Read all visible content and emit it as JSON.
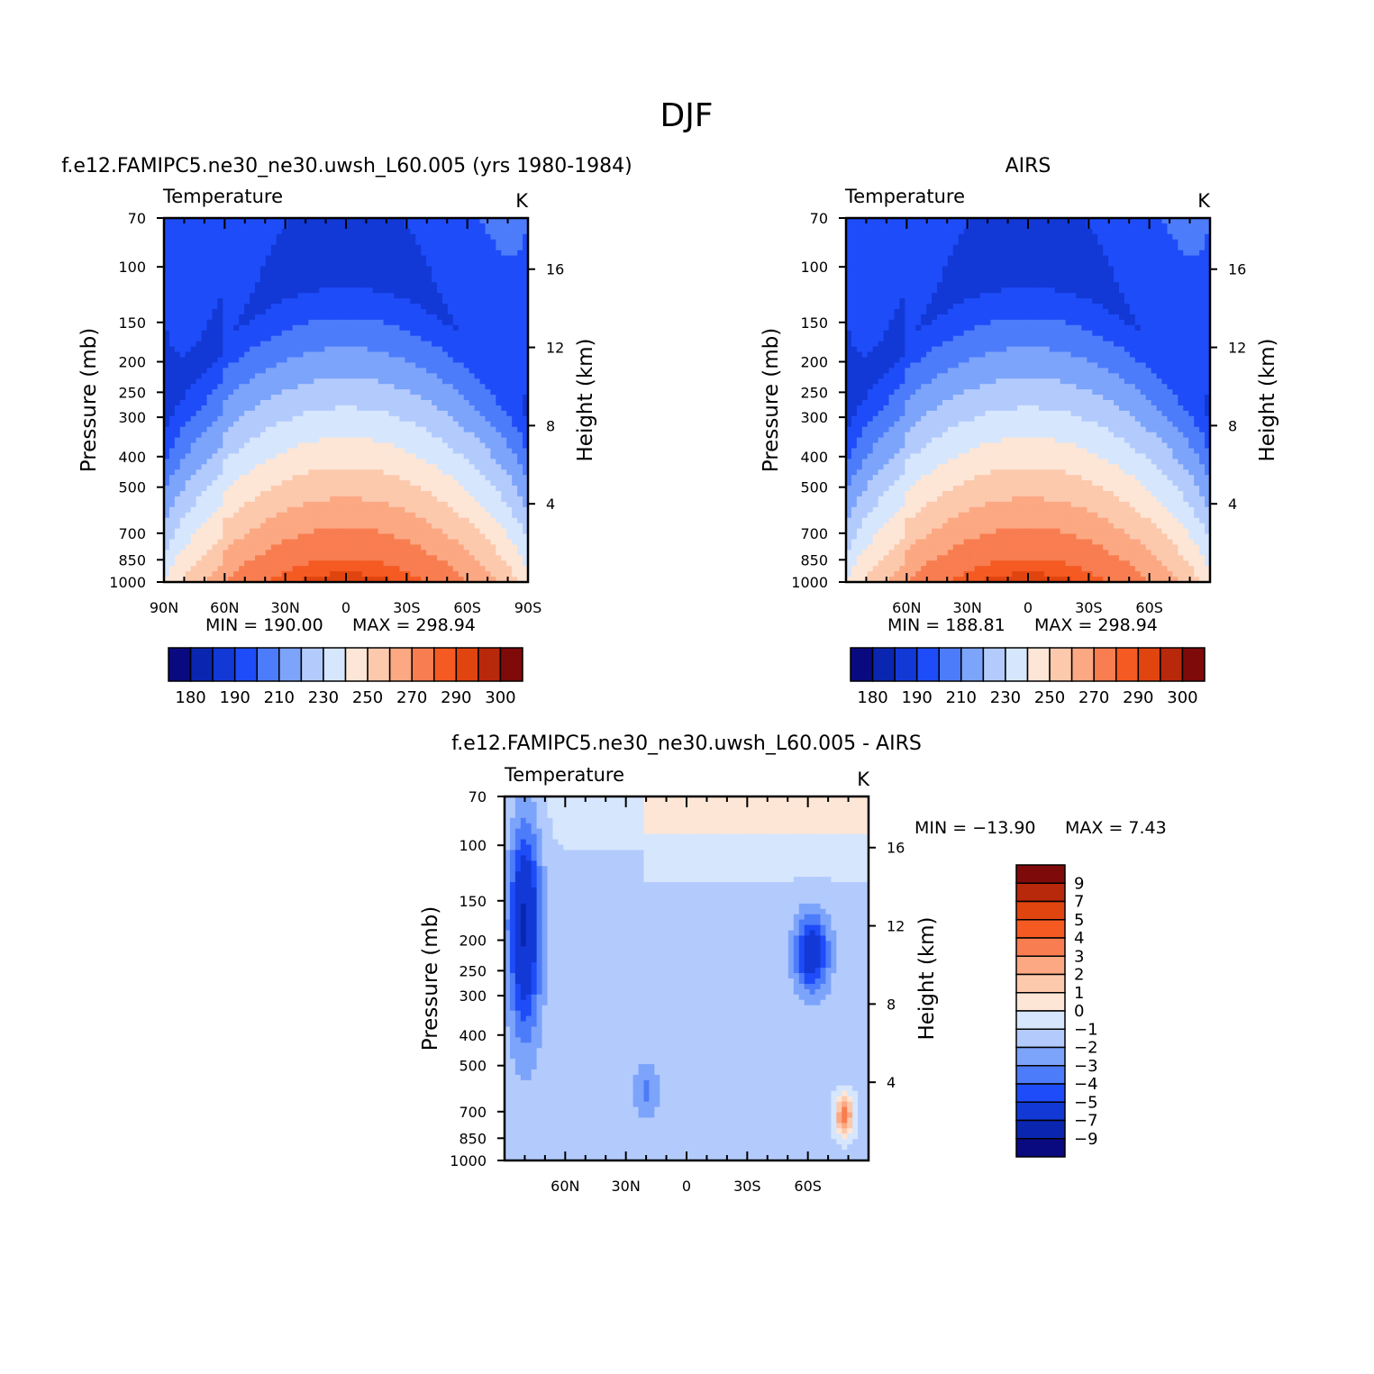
{
  "page": {
    "title": "DJF"
  },
  "colors": {
    "temperature_palette": [
      "#0a0a80",
      "#0a26b0",
      "#1239d6",
      "#1e4cf8",
      "#4d7cfa",
      "#7da4fb",
      "#b3cbfc",
      "#d6e6fd",
      "#fde6d6",
      "#fcc9ad",
      "#fba883",
      "#f87d50",
      "#f55a22",
      "#e0440f",
      "#b8280a",
      "#7f0a0a"
    ],
    "difference_palette": [
      "#0a0a80",
      "#0a26b0",
      "#1239d6",
      "#1e4cf8",
      "#4d7cfa",
      "#7da4fb",
      "#b3cbfc",
      "#d6e6fd",
      "#fde6d6",
      "#fcc9ad",
      "#fba883",
      "#f87d50",
      "#f55a22",
      "#e0440f",
      "#b8280a",
      "#7f0a0a"
    ]
  },
  "chart_data": [
    {
      "type": "heatmap",
      "id": "model",
      "title": "f.e12.FAMIPC5.ne30_ne30.uwsh_L60.005 (yrs 1980-1984)",
      "subtitle_left": "Temperature",
      "subtitle_right": "K",
      "xlabel": "",
      "ylabel": "Pressure (mb)",
      "ylabel_right": "Height (km)",
      "x_ticks": [
        "90N",
        "60N",
        "30N",
        "0",
        "30S",
        "60S",
        "90S"
      ],
      "x_tick_values": [
        90,
        60,
        30,
        0,
        -30,
        -60,
        -90
      ],
      "xlim": [
        90,
        -90
      ],
      "y_ticks": [
        70,
        100,
        150,
        200,
        250,
        300,
        400,
        500,
        700,
        850,
        1000
      ],
      "y_scale": "log",
      "ylim": [
        1000,
        70
      ],
      "y_right_ticks": [
        4,
        8,
        12,
        16
      ],
      "min_label": "MIN = 190.00",
      "max_label": "MAX = 298.94",
      "min": 190.0,
      "max": 298.94,
      "colorbar": {
        "orientation": "horizontal",
        "tick_labels": [
          "180",
          "190",
          "210",
          "230",
          "250",
          "270",
          "290",
          "300"
        ]
      }
    },
    {
      "type": "heatmap",
      "id": "obs",
      "title": "AIRS",
      "subtitle_left": "Temperature",
      "subtitle_right": "K",
      "xlabel": "",
      "ylabel": "Pressure (mb)",
      "ylabel_right": "Height (km)",
      "x_ticks": [
        "60N",
        "30N",
        "0",
        "30S",
        "60S"
      ],
      "x_tick_values": [
        60,
        30,
        0,
        -30,
        -60
      ],
      "xlim": [
        90,
        -90
      ],
      "y_ticks": [
        70,
        100,
        150,
        200,
        250,
        300,
        400,
        500,
        700,
        850,
        1000
      ],
      "y_scale": "log",
      "ylim": [
        1000,
        70
      ],
      "y_right_ticks": [
        4,
        8,
        12,
        16
      ],
      "min_label": "MIN = 188.81",
      "max_label": "MAX = 298.94",
      "min": 188.81,
      "max": 298.94,
      "colorbar": {
        "orientation": "horizontal",
        "tick_labels": [
          "180",
          "190",
          "210",
          "230",
          "250",
          "270",
          "290",
          "300"
        ]
      }
    },
    {
      "type": "heatmap",
      "id": "diff",
      "title": "f.e12.FAMIPC5.ne30_ne30.uwsh_L60.005 - AIRS",
      "subtitle_left": "Temperature",
      "subtitle_right": "K",
      "xlabel": "",
      "ylabel": "Pressure (mb)",
      "ylabel_right": "Height (km)",
      "x_ticks": [
        "60N",
        "30N",
        "0",
        "30S",
        "60S"
      ],
      "x_tick_values": [
        60,
        30,
        0,
        -30,
        -60
      ],
      "xlim": [
        90,
        -90
      ],
      "y_ticks": [
        70,
        100,
        150,
        200,
        250,
        300,
        400,
        500,
        700,
        850,
        1000
      ],
      "y_scale": "log",
      "ylim": [
        1000,
        70
      ],
      "y_right_ticks": [
        4,
        8,
        12,
        16
      ],
      "min_label": "MIN = -13.90",
      "max_label": "MAX = 7.43",
      "min": -13.9,
      "max": 7.43,
      "colorbar": {
        "orientation": "vertical",
        "tick_labels": [
          "9",
          "7",
          "5",
          "4",
          "3",
          "2",
          "1",
          "0",
          "-1",
          "-2",
          "-3",
          "-4",
          "-5",
          "-7",
          "-9"
        ]
      }
    }
  ]
}
